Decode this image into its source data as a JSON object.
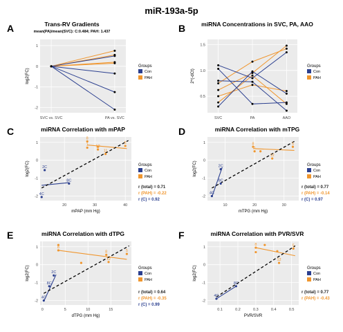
{
  "figure_title": "miR-193a-5p",
  "colors": {
    "con": "#2b3f8f",
    "pah": "#f0962e",
    "panel_bg": "#ebebeb",
    "grid": "#ffffff",
    "trend": "#000000"
  },
  "chart_data": [
    {
      "id": "A",
      "type": "line",
      "title": "Trans-RV Gradients",
      "subtitle": "mean(PA)/mean(SVC): C:0.484; PAH: 1.437",
      "ylabel": "log2(FC)",
      "xlabel": "",
      "categories": [
        "SVC vs. SVC",
        "PA vs. SVC"
      ],
      "ylim": [
        -2.25,
        1.3
      ],
      "yticks": [
        -2,
        -1,
        0,
        1
      ],
      "legend": {
        "title": "Groups",
        "items": [
          "Con",
          "PAH"
        ]
      },
      "series": [
        {
          "group": "PAH",
          "values": [
            0,
            0.75
          ]
        },
        {
          "group": "PAH",
          "values": [
            0,
            0.55
          ]
        },
        {
          "group": "PAH",
          "values": [
            0,
            0.2
          ]
        },
        {
          "group": "PAH",
          "values": [
            0,
            0.15
          ]
        },
        {
          "group": "Con",
          "values": [
            0,
            0.5
          ]
        },
        {
          "group": "Con",
          "values": [
            0,
            -0.35
          ]
        },
        {
          "group": "Con",
          "values": [
            0,
            -1.25
          ]
        },
        {
          "group": "Con",
          "values": [
            0,
            -2.1
          ]
        }
      ]
    },
    {
      "id": "B",
      "type": "line",
      "title": "miRNA Concentrations in SVC, PA, AAO",
      "ylabel": "2^(-dCt)",
      "xlabel": "",
      "categories": [
        "SVC",
        "PA",
        "AAO"
      ],
      "ylim": [
        0.18,
        1.6
      ],
      "yticks": [
        0.5,
        1.0,
        1.5
      ],
      "ytick_labels": [
        "0.5",
        "1.0",
        "1.5"
      ],
      "legend": {
        "title": "Groups",
        "items": [
          "Con",
          "PAH"
        ]
      },
      "series": [
        {
          "group": "PAH",
          "values": [
            0.75,
            1.17,
            1.42
          ]
        },
        {
          "group": "PAH",
          "values": [
            0.62,
            0.95,
            1.48
          ]
        },
        {
          "group": "PAH",
          "values": [
            0.5,
            0.72,
            0.6
          ]
        },
        {
          "group": "PAH",
          "values": [
            0.38,
            0.9,
            0.35
          ]
        },
        {
          "group": "Con",
          "values": [
            1.1,
            0.85,
            1.35
          ]
        },
        {
          "group": "Con",
          "values": [
            1.03,
            0.35,
            0.38
          ]
        },
        {
          "group": "Con",
          "values": [
            0.8,
            0.78,
            0.22
          ]
        },
        {
          "group": "Con",
          "values": [
            0.3,
            0.98,
            0.55
          ]
        }
      ]
    },
    {
      "id": "C",
      "type": "scatter",
      "title": "miRNA Correlation with mPAP",
      "xlabel": "mPAP (mm Hg)",
      "ylabel": "log2(FC)",
      "xlim": [
        12,
        42
      ],
      "ylim": [
        -2.25,
        1.3
      ],
      "xticks": [
        20,
        30,
        40
      ],
      "yticks": [
        -2,
        -1,
        0,
        1
      ],
      "legend": {
        "title": "Groups",
        "items": [
          "Con",
          "PAH"
        ]
      },
      "stats": [
        "r (total) = 0.71",
        "r (PAH) = -0.22",
        "r (C) = 0.92"
      ],
      "points": [
        {
          "group": "PAH",
          "x": 27.5,
          "y": 1.05,
          "label": "8"
        },
        {
          "group": "PAH",
          "x": 27.5,
          "y": 0.7,
          "label": "1"
        },
        {
          "group": "PAH",
          "x": 31,
          "y": 0.75,
          "label": ""
        },
        {
          "group": "PAH",
          "x": 31,
          "y": 0.6,
          "label": "12"
        },
        {
          "group": "PAH",
          "x": 33.5,
          "y": 0.35,
          "label": "11"
        },
        {
          "group": "PAH",
          "x": 40,
          "y": 0.8,
          "label": "5"
        },
        {
          "group": "Con",
          "x": 13.5,
          "y": -0.55,
          "label": "2C"
        },
        {
          "group": "Con",
          "x": 21.5,
          "y": -1.3,
          "label": "8C"
        },
        {
          "group": "Con",
          "x": 12.5,
          "y": -2.05,
          "label": "4C"
        }
      ],
      "fits": [
        {
          "group": "PAH",
          "x": [
            27.5,
            40.5
          ],
          "y": [
            0.85,
            0.65
          ]
        },
        {
          "group": "Con",
          "x": [
            12.5,
            21.5
          ],
          "y": [
            -1.4,
            -1.25
          ]
        },
        {
          "group": "total",
          "x": [
            12.5,
            41
          ],
          "y": [
            -1.55,
            1.1
          ]
        }
      ]
    },
    {
      "id": "D",
      "type": "scatter",
      "title": "miRNA Correlation with mTPG",
      "xlabel": "mTPG (mm Hg)",
      "ylabel": "log2(FC)",
      "xlim": [
        4,
        35
      ],
      "ylim": [
        -2.25,
        1.3
      ],
      "xticks": [
        10,
        20,
        30
      ],
      "yticks": [
        -2,
        -1,
        0,
        1
      ],
      "legend": {
        "title": "Groups",
        "items": [
          "Con",
          "PAH"
        ]
      },
      "stats": [
        "r (total) = 0.77",
        "r (PAH) = -0.14",
        "r (C) = 0.97"
      ],
      "points": [
        {
          "group": "PAH",
          "x": 19.5,
          "y": 0.75,
          "label": "8"
        },
        {
          "group": "PAH",
          "x": 20,
          "y": 0.5,
          "label": "1"
        },
        {
          "group": "PAH",
          "x": 22,
          "y": 0.5,
          "label": ""
        },
        {
          "group": "PAH",
          "x": 26,
          "y": 0.1,
          "label": "12"
        },
        {
          "group": "PAH",
          "x": 33,
          "y": 0.75,
          "label": "5"
        },
        {
          "group": "Con",
          "x": 8.5,
          "y": -0.5,
          "label": "2C"
        },
        {
          "group": "Con",
          "x": 8.5,
          "y": -1.3,
          "label": "8C"
        },
        {
          "group": "Con",
          "x": 5.5,
          "y": -2.0,
          "label": "4C"
        }
      ],
      "fits": [
        {
          "group": "PAH",
          "x": [
            19.5,
            33.5
          ],
          "y": [
            0.65,
            0.55
          ]
        },
        {
          "group": "Con",
          "x": [
            5.5,
            9
          ],
          "y": [
            -2.05,
            -0.4
          ]
        },
        {
          "group": "total",
          "x": [
            5.5,
            34
          ],
          "y": [
            -1.55,
            1.1
          ]
        }
      ]
    },
    {
      "id": "E",
      "type": "scatter",
      "title": "miRNA Correlation with dTPG",
      "xlabel": "dTPG (mm Hg)",
      "ylabel": "log2(FC)",
      "xlim": [
        -0.5,
        19.5
      ],
      "ylim": [
        -2.25,
        1.3
      ],
      "xticks": [
        0,
        5,
        10,
        15
      ],
      "yticks": [
        -2,
        -1,
        0,
        1
      ],
      "legend": {
        "title": "Groups",
        "items": [
          "Con",
          "PAH"
        ]
      },
      "stats": [
        "r (total) = 0.64",
        "r (PAH) = -0.35",
        "r (C) = 0.99"
      ],
      "points": [
        {
          "group": "PAH",
          "x": 3.5,
          "y": 1.1,
          "label": ""
        },
        {
          "group": "PAH",
          "x": 3.5,
          "y": 0.8,
          "label": "8"
        },
        {
          "group": "PAH",
          "x": 8.5,
          "y": 0.1,
          "label": ""
        },
        {
          "group": "PAH",
          "x": 14,
          "y": 0.55,
          "label": "8"
        },
        {
          "group": "PAH",
          "x": 14.5,
          "y": 0.15,
          "label": "12"
        },
        {
          "group": "PAH",
          "x": 18.5,
          "y": 0.6,
          "label": "5"
        },
        {
          "group": "Con",
          "x": 2.5,
          "y": -0.6,
          "label": "2C"
        },
        {
          "group": "Con",
          "x": 1.5,
          "y": -1.2,
          "label": "8C"
        },
        {
          "group": "Con",
          "x": 0.3,
          "y": -2.0,
          "label": "4C"
        }
      ],
      "fits": [
        {
          "group": "PAH",
          "x": [
            3.5,
            18.5
          ],
          "y": [
            0.8,
            0.3
          ]
        },
        {
          "group": "Con",
          "x": [
            0.3,
            3
          ],
          "y": [
            -2.05,
            -0.55
          ]
        },
        {
          "group": "total",
          "x": [
            0.3,
            19
          ],
          "y": [
            -1.6,
            1.05
          ]
        }
      ]
    },
    {
      "id": "F",
      "type": "scatter",
      "title": "miRNA Correlation with PVR/SVR",
      "xlabel": "PVR/SVR",
      "ylabel": "log2(FC)",
      "xlim": [
        0.03,
        0.54
      ],
      "ylim": [
        -2.25,
        1.3
      ],
      "xticks": [
        0.1,
        0.2,
        0.3,
        0.4,
        0.5
      ],
      "xtick_labels": [
        "0.1",
        "0.2",
        "0.3",
        "0.4",
        "0.5"
      ],
      "yticks": [
        -2,
        -1,
        0,
        1
      ],
      "legend": {
        "title": "Groups",
        "items": [
          "Con",
          "PAH"
        ]
      },
      "stats": [
        "r (total) = 0.77",
        "r (PAH) = -0.43"
      ],
      "points": [
        {
          "group": "PAH",
          "x": 0.3,
          "y": 0.95,
          "label": "8"
        },
        {
          "group": "PAH",
          "x": 0.3,
          "y": 0.7,
          "label": ""
        },
        {
          "group": "PAH",
          "x": 0.35,
          "y": 1.1,
          "label": ""
        },
        {
          "group": "PAH",
          "x": 0.42,
          "y": 0.75,
          "label": ""
        },
        {
          "group": "PAH",
          "x": 0.43,
          "y": 0.1,
          "label": "12"
        },
        {
          "group": "PAH",
          "x": 0.51,
          "y": 0.9,
          "label": "5"
        },
        {
          "group": "Con",
          "x": 0.19,
          "y": -1.2,
          "label": "8C"
        },
        {
          "group": "Con",
          "x": 0.08,
          "y": -1.9,
          "label": "4C"
        }
      ],
      "fits": [
        {
          "group": "PAH",
          "x": [
            0.3,
            0.52
          ],
          "y": [
            0.95,
            0.5
          ]
        },
        {
          "group": "Con",
          "x": [
            0.08,
            0.19
          ],
          "y": [
            -1.9,
            -1.2
          ]
        },
        {
          "group": "total",
          "x": [
            0.08,
            0.52
          ],
          "y": [
            -1.8,
            1.05
          ]
        }
      ]
    }
  ]
}
